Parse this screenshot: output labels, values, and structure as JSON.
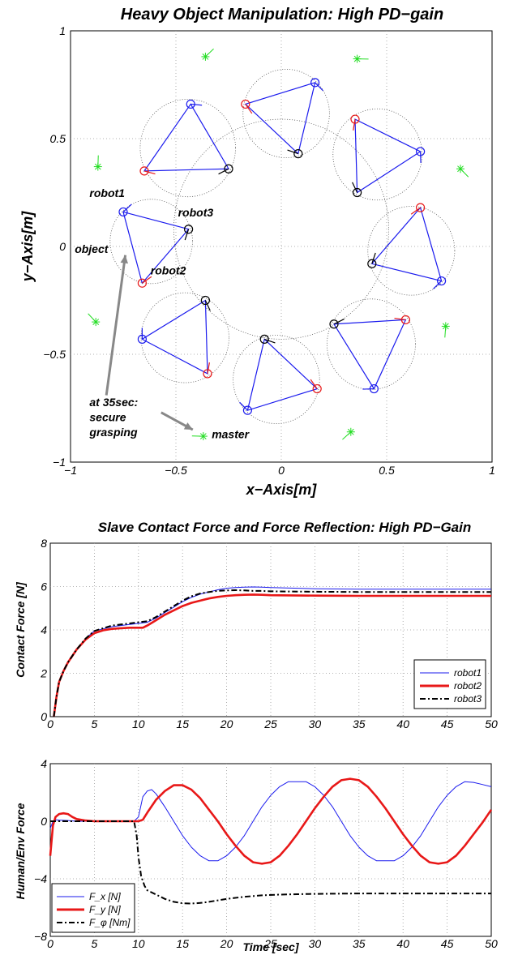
{
  "chart_data": [
    {
      "type": "scatter",
      "title": "Heavy Object Manipulation: High PD−gain",
      "xlabel": "x−Axis[m]",
      "ylabel": "y−Axis[m]",
      "xlim": [
        -1,
        1
      ],
      "ylim": [
        -1,
        1
      ],
      "xticks": [
        "−1",
        "−0.5",
        "0",
        "0.5",
        "1"
      ],
      "yticks": [
        "−1",
        "−0.5",
        "0",
        "0.5",
        "1"
      ],
      "grid": true,
      "big_circle": {
        "center": [
          0,
          0.08
        ],
        "radius": 0.51
      },
      "formations": [
        {
          "robots": [
            [
              -0.44,
              0.08
            ],
            [
              -0.66,
              -0.17
            ],
            [
              -0.75,
              0.16
            ]
          ]
        },
        {
          "robots": [
            [
              -0.25,
              0.36
            ],
            [
              -0.65,
              0.35
            ],
            [
              -0.43,
              0.66
            ]
          ]
        },
        {
          "robots": [
            [
              0.08,
              0.43
            ],
            [
              -0.17,
              0.66
            ],
            [
              0.16,
              0.76
            ]
          ]
        },
        {
          "robots": [
            [
              0.36,
              0.25
            ],
            [
              0.35,
              0.59
            ],
            [
              0.66,
              0.44
            ]
          ]
        },
        {
          "robots": [
            [
              0.43,
              -0.08
            ],
            [
              0.66,
              0.18
            ],
            [
              0.76,
              -0.16
            ]
          ]
        },
        {
          "robots": [
            [
              0.25,
              -0.36
            ],
            [
              0.59,
              -0.34
            ],
            [
              0.44,
              -0.66
            ]
          ]
        },
        {
          "robots": [
            [
              -0.08,
              -0.43
            ],
            [
              0.17,
              -0.66
            ],
            [
              -0.16,
              -0.76
            ]
          ]
        },
        {
          "robots": [
            [
              -0.36,
              -0.25
            ],
            [
              -0.35,
              -0.59
            ],
            [
              -0.66,
              -0.43
            ]
          ]
        }
      ],
      "master_points": [
        [
          -0.37,
          -0.88
        ],
        [
          0.33,
          -0.86
        ],
        [
          0.78,
          -0.37
        ],
        [
          0.85,
          0.36
        ],
        [
          0.36,
          0.87
        ],
        [
          -0.36,
          0.88
        ],
        [
          -0.87,
          0.37
        ],
        [
          -0.88,
          -0.35
        ]
      ],
      "annotations": {
        "robot1": "robot1",
        "robot2": "robot2",
        "robot3": "robot3",
        "object": "object",
        "at35_line1": "at 35sec:",
        "at35_line2": "secure",
        "at35_line3": "grasping",
        "master": "master"
      },
      "colors": {
        "formation": "#1a1aee",
        "robot1": "#1a1aee",
        "robot2": "#e81818",
        "robot3": "#000000",
        "master": "#22dd22",
        "arrow": "#888888"
      }
    },
    {
      "type": "line",
      "title": "Slave Contact Force and Force Reflection: High PD−Gain",
      "xlabel": "",
      "ylabel": "Contact Force [N]",
      "xlim": [
        0,
        50
      ],
      "ylim": [
        0,
        8
      ],
      "xticks": [
        "0",
        "5",
        "10",
        "15",
        "20",
        "25",
        "30",
        "35",
        "40",
        "45",
        "50"
      ],
      "yticks": [
        "0",
        "2",
        "4",
        "6",
        "8"
      ],
      "grid": true,
      "legend_position": "bottom-right",
      "series": [
        {
          "name": "robot1",
          "color": "#1a1aee",
          "style": "thin",
          "x": [
            0.4,
            0.7,
            1,
            1.5,
            2,
            3,
            4,
            5,
            6,
            7,
            8,
            9,
            10,
            11,
            12,
            13,
            14,
            15,
            16,
            17,
            18,
            19,
            20,
            21,
            22,
            23,
            24,
            25,
            30,
            35,
            40,
            45,
            50
          ],
          "y": [
            0,
            0.9,
            1.6,
            2.1,
            2.5,
            3.1,
            3.6,
            3.95,
            4.05,
            4.15,
            4.2,
            4.25,
            4.3,
            4.35,
            4.55,
            4.8,
            5.05,
            5.3,
            5.5,
            5.65,
            5.75,
            5.85,
            5.92,
            5.95,
            5.97,
            5.98,
            5.97,
            5.95,
            5.9,
            5.88,
            5.88,
            5.88,
            5.88
          ]
        },
        {
          "name": "robot2",
          "color": "#e81818",
          "style": "thick",
          "x": [
            0.4,
            0.7,
            1,
            1.5,
            2,
            3,
            4,
            5,
            6,
            7,
            8,
            9,
            10,
            10.5,
            11,
            12,
            13,
            14,
            15,
            16,
            17,
            18,
            19,
            20,
            21,
            22,
            23,
            24,
            25,
            30,
            35,
            40,
            45,
            50
          ],
          "y": [
            0,
            0.9,
            1.6,
            2.1,
            2.5,
            3.1,
            3.55,
            3.85,
            3.98,
            4.05,
            4.08,
            4.1,
            4.1,
            4.1,
            4.2,
            4.45,
            4.7,
            4.9,
            5.1,
            5.25,
            5.35,
            5.45,
            5.52,
            5.57,
            5.6,
            5.62,
            5.63,
            5.62,
            5.6,
            5.58,
            5.57,
            5.57,
            5.57,
            5.57
          ]
        },
        {
          "name": "robot3",
          "color": "#000000",
          "style": "dashdot",
          "x": [
            0.4,
            0.7,
            1,
            1.5,
            2,
            3,
            4,
            5,
            6,
            7,
            8,
            9,
            10,
            11,
            12,
            13,
            14,
            15,
            16,
            17,
            18,
            19,
            20,
            21,
            22,
            23,
            24,
            25,
            30,
            35,
            40,
            45,
            50
          ],
          "y": [
            0,
            0.9,
            1.6,
            2.1,
            2.5,
            3.1,
            3.6,
            3.95,
            4.08,
            4.2,
            4.25,
            4.3,
            4.35,
            4.4,
            4.6,
            4.85,
            5.1,
            5.35,
            5.55,
            5.68,
            5.75,
            5.8,
            5.82,
            5.83,
            5.82,
            5.8,
            5.8,
            5.78,
            5.76,
            5.75,
            5.75,
            5.75,
            5.75
          ]
        }
      ]
    },
    {
      "type": "line",
      "title": "",
      "xlabel": "Time [sec]",
      "ylabel": "Human/Env Force",
      "xlim": [
        0,
        50
      ],
      "ylim": [
        -8,
        4
      ],
      "xticks": [
        "0",
        "5",
        "10",
        "15",
        "20",
        "25",
        "30",
        "35",
        "40",
        "45",
        "50"
      ],
      "yticks": [
        "−8",
        "−4",
        "0",
        "4"
      ],
      "grid": true,
      "legend_position": "bottom-left",
      "series": [
        {
          "name": "F_x [N]",
          "color": "#1a1aee",
          "style": "thin",
          "x": [
            0,
            0.3,
            0.6,
            1,
            2,
            3,
            4,
            5,
            6,
            7,
            8,
            9,
            9.5,
            10,
            10.5,
            11,
            11.5,
            12,
            13,
            14,
            15,
            16,
            17,
            18,
            19,
            20,
            21,
            22,
            23,
            24,
            25,
            26,
            27,
            28,
            29,
            30,
            31,
            32,
            33,
            34,
            35,
            36,
            37,
            38,
            39,
            40,
            41,
            42,
            43,
            44,
            45,
            46,
            47,
            48,
            49,
            50
          ],
          "y": [
            -0.5,
            0,
            0.1,
            0.08,
            0.05,
            0,
            0,
            0,
            0,
            0,
            0,
            0,
            0,
            0.3,
            1.7,
            2.1,
            2.2,
            1.9,
            1.0,
            0,
            -1.0,
            -1.8,
            -2.4,
            -2.75,
            -2.75,
            -2.4,
            -1.8,
            -1.0,
            0,
            1.0,
            1.8,
            2.4,
            2.75,
            2.75,
            2.75,
            2.4,
            1.8,
            1.0,
            0,
            -1.0,
            -1.8,
            -2.4,
            -2.75,
            -2.75,
            -2.75,
            -2.4,
            -1.8,
            -1.0,
            0,
            1.0,
            1.8,
            2.4,
            2.75,
            2.7,
            2.55,
            2.4
          ]
        },
        {
          "name": "F_y [N]",
          "color": "#e81818",
          "style": "thick",
          "x": [
            0,
            0.3,
            0.6,
            1,
            1.5,
            2,
            2.5,
            3,
            4,
            5,
            6,
            7,
            8,
            9,
            10,
            10.5,
            11,
            12,
            13,
            14,
            15,
            16,
            17,
            18,
            19,
            20,
            21,
            22,
            23,
            24,
            25,
            26,
            27,
            28,
            29,
            30,
            31,
            32,
            33,
            34,
            35,
            36,
            37,
            38,
            39,
            40,
            41,
            42,
            43,
            44,
            45,
            46,
            47,
            48,
            49,
            50
          ],
          "y": [
            -2.4,
            -0.3,
            0.3,
            0.5,
            0.55,
            0.5,
            0.3,
            0.15,
            0.05,
            0,
            0,
            0,
            0,
            0,
            0,
            0.1,
            0.6,
            1.5,
            2.1,
            2.5,
            2.5,
            2.2,
            1.6,
            0.8,
            0,
            -0.9,
            -1.7,
            -2.4,
            -2.85,
            -2.95,
            -2.85,
            -2.4,
            -1.7,
            -0.9,
            0,
            0.9,
            1.7,
            2.4,
            2.85,
            2.95,
            2.85,
            2.4,
            1.7,
            0.9,
            0,
            -0.9,
            -1.7,
            -2.4,
            -2.85,
            -2.95,
            -2.85,
            -2.4,
            -1.7,
            -0.9,
            -0.1,
            0.8
          ]
        },
        {
          "name": "F_φ [Nm]",
          "color": "#000000",
          "style": "dashdot",
          "x": [
            0,
            5,
            9.5,
            9.8,
            10,
            10.3,
            10.7,
            11,
            12,
            13,
            14,
            15,
            16,
            17,
            18,
            19,
            20,
            22,
            24,
            26,
            28,
            30,
            35,
            40,
            45,
            50
          ],
          "y": [
            0,
            0,
            0,
            -1.0,
            -2.5,
            -3.8,
            -4.5,
            -4.8,
            -5.1,
            -5.4,
            -5.6,
            -5.7,
            -5.72,
            -5.68,
            -5.6,
            -5.5,
            -5.4,
            -5.25,
            -5.15,
            -5.1,
            -5.07,
            -5.05,
            -5.02,
            -5.02,
            -5.02,
            -5.02
          ]
        }
      ]
    }
  ]
}
